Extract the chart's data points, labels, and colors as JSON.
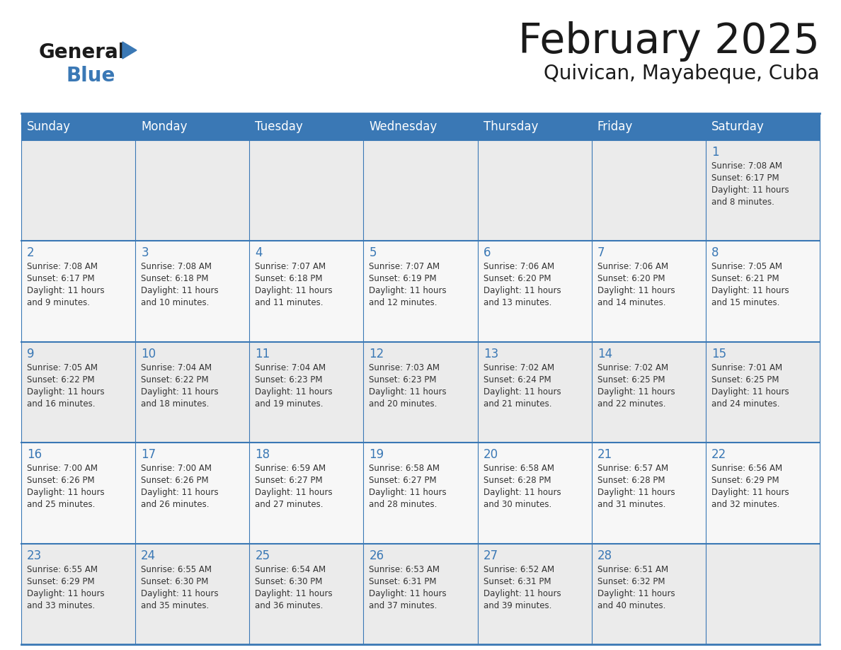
{
  "title": "February 2025",
  "subtitle": "Quivican, Mayabeque, Cuba",
  "header_color": "#3a78b5",
  "header_text_color": "#ffffff",
  "row_bg_even": "#ebebeb",
  "row_bg_odd": "#f7f7f7",
  "border_color": "#3a78b5",
  "day_names": [
    "Sunday",
    "Monday",
    "Tuesday",
    "Wednesday",
    "Thursday",
    "Friday",
    "Saturday"
  ],
  "title_color": "#1a1a1a",
  "subtitle_color": "#1a1a1a",
  "day_number_color": "#3a78b5",
  "info_color": "#333333",
  "logo_general_color": "#1a1a1a",
  "logo_blue_color": "#3a78b5",
  "logo_triangle_color": "#3a78b5",
  "days": [
    {
      "date": 1,
      "col": 6,
      "row": 0,
      "sunrise": "7:08 AM",
      "sunset": "6:17 PM",
      "daylight_h": "11 hours",
      "daylight_m": "and 8 minutes."
    },
    {
      "date": 2,
      "col": 0,
      "row": 1,
      "sunrise": "7:08 AM",
      "sunset": "6:17 PM",
      "daylight_h": "11 hours",
      "daylight_m": "and 9 minutes."
    },
    {
      "date": 3,
      "col": 1,
      "row": 1,
      "sunrise": "7:08 AM",
      "sunset": "6:18 PM",
      "daylight_h": "11 hours",
      "daylight_m": "and 10 minutes."
    },
    {
      "date": 4,
      "col": 2,
      "row": 1,
      "sunrise": "7:07 AM",
      "sunset": "6:18 PM",
      "daylight_h": "11 hours",
      "daylight_m": "and 11 minutes."
    },
    {
      "date": 5,
      "col": 3,
      "row": 1,
      "sunrise": "7:07 AM",
      "sunset": "6:19 PM",
      "daylight_h": "11 hours",
      "daylight_m": "and 12 minutes."
    },
    {
      "date": 6,
      "col": 4,
      "row": 1,
      "sunrise": "7:06 AM",
      "sunset": "6:20 PM",
      "daylight_h": "11 hours",
      "daylight_m": "and 13 minutes."
    },
    {
      "date": 7,
      "col": 5,
      "row": 1,
      "sunrise": "7:06 AM",
      "sunset": "6:20 PM",
      "daylight_h": "11 hours",
      "daylight_m": "and 14 minutes."
    },
    {
      "date": 8,
      "col": 6,
      "row": 1,
      "sunrise": "7:05 AM",
      "sunset": "6:21 PM",
      "daylight_h": "11 hours",
      "daylight_m": "and 15 minutes."
    },
    {
      "date": 9,
      "col": 0,
      "row": 2,
      "sunrise": "7:05 AM",
      "sunset": "6:22 PM",
      "daylight_h": "11 hours",
      "daylight_m": "and 16 minutes."
    },
    {
      "date": 10,
      "col": 1,
      "row": 2,
      "sunrise": "7:04 AM",
      "sunset": "6:22 PM",
      "daylight_h": "11 hours",
      "daylight_m": "and 18 minutes."
    },
    {
      "date": 11,
      "col": 2,
      "row": 2,
      "sunrise": "7:04 AM",
      "sunset": "6:23 PM",
      "daylight_h": "11 hours",
      "daylight_m": "and 19 minutes."
    },
    {
      "date": 12,
      "col": 3,
      "row": 2,
      "sunrise": "7:03 AM",
      "sunset": "6:23 PM",
      "daylight_h": "11 hours",
      "daylight_m": "and 20 minutes."
    },
    {
      "date": 13,
      "col": 4,
      "row": 2,
      "sunrise": "7:02 AM",
      "sunset": "6:24 PM",
      "daylight_h": "11 hours",
      "daylight_m": "and 21 minutes."
    },
    {
      "date": 14,
      "col": 5,
      "row": 2,
      "sunrise": "7:02 AM",
      "sunset": "6:25 PM",
      "daylight_h": "11 hours",
      "daylight_m": "and 22 minutes."
    },
    {
      "date": 15,
      "col": 6,
      "row": 2,
      "sunrise": "7:01 AM",
      "sunset": "6:25 PM",
      "daylight_h": "11 hours",
      "daylight_m": "and 24 minutes."
    },
    {
      "date": 16,
      "col": 0,
      "row": 3,
      "sunrise": "7:00 AM",
      "sunset": "6:26 PM",
      "daylight_h": "11 hours",
      "daylight_m": "and 25 minutes."
    },
    {
      "date": 17,
      "col": 1,
      "row": 3,
      "sunrise": "7:00 AM",
      "sunset": "6:26 PM",
      "daylight_h": "11 hours",
      "daylight_m": "and 26 minutes."
    },
    {
      "date": 18,
      "col": 2,
      "row": 3,
      "sunrise": "6:59 AM",
      "sunset": "6:27 PM",
      "daylight_h": "11 hours",
      "daylight_m": "and 27 minutes."
    },
    {
      "date": 19,
      "col": 3,
      "row": 3,
      "sunrise": "6:58 AM",
      "sunset": "6:27 PM",
      "daylight_h": "11 hours",
      "daylight_m": "and 28 minutes."
    },
    {
      "date": 20,
      "col": 4,
      "row": 3,
      "sunrise": "6:58 AM",
      "sunset": "6:28 PM",
      "daylight_h": "11 hours",
      "daylight_m": "and 30 minutes."
    },
    {
      "date": 21,
      "col": 5,
      "row": 3,
      "sunrise": "6:57 AM",
      "sunset": "6:28 PM",
      "daylight_h": "11 hours",
      "daylight_m": "and 31 minutes."
    },
    {
      "date": 22,
      "col": 6,
      "row": 3,
      "sunrise": "6:56 AM",
      "sunset": "6:29 PM",
      "daylight_h": "11 hours",
      "daylight_m": "and 32 minutes."
    },
    {
      "date": 23,
      "col": 0,
      "row": 4,
      "sunrise": "6:55 AM",
      "sunset": "6:29 PM",
      "daylight_h": "11 hours",
      "daylight_m": "and 33 minutes."
    },
    {
      "date": 24,
      "col": 1,
      "row": 4,
      "sunrise": "6:55 AM",
      "sunset": "6:30 PM",
      "daylight_h": "11 hours",
      "daylight_m": "and 35 minutes."
    },
    {
      "date": 25,
      "col": 2,
      "row": 4,
      "sunrise": "6:54 AM",
      "sunset": "6:30 PM",
      "daylight_h": "11 hours",
      "daylight_m": "and 36 minutes."
    },
    {
      "date": 26,
      "col": 3,
      "row": 4,
      "sunrise": "6:53 AM",
      "sunset": "6:31 PM",
      "daylight_h": "11 hours",
      "daylight_m": "and 37 minutes."
    },
    {
      "date": 27,
      "col": 4,
      "row": 4,
      "sunrise": "6:52 AM",
      "sunset": "6:31 PM",
      "daylight_h": "11 hours",
      "daylight_m": "and 39 minutes."
    },
    {
      "date": 28,
      "col": 5,
      "row": 4,
      "sunrise": "6:51 AM",
      "sunset": "6:32 PM",
      "daylight_h": "11 hours",
      "daylight_m": "and 40 minutes."
    }
  ]
}
